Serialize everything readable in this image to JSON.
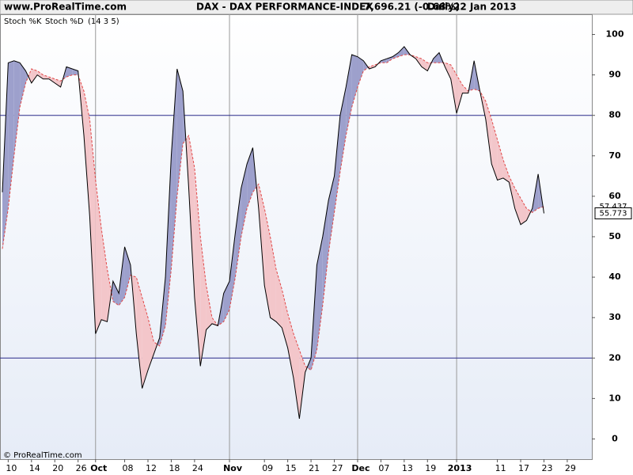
{
  "header": {
    "site": "www.ProRealTime.com",
    "instrument": "DAX - DAX PERFORMANCE-INDEX",
    "quote": "7,696.21 (-0.68%)",
    "period": "Daily",
    "date": "22 Jan 2013"
  },
  "footer": "© ProRealTime.com",
  "chart_data": {
    "type": "line",
    "indicator_params": "(14 3 5)",
    "categories": [
      null,
      "10",
      null,
      null,
      null,
      "14",
      null,
      null,
      null,
      "20",
      null,
      null,
      null,
      "26",
      null,
      null,
      "Oct",
      null,
      null,
      null,
      null,
      "08",
      null,
      null,
      null,
      "12",
      null,
      null,
      null,
      "18",
      null,
      null,
      null,
      "24",
      null,
      null,
      null,
      null,
      null,
      "Nov",
      null,
      null,
      null,
      null,
      null,
      "09",
      null,
      null,
      null,
      "15",
      null,
      null,
      null,
      "21",
      null,
      null,
      null,
      "27",
      null,
      null,
      null,
      "Dec",
      null,
      null,
      null,
      "07",
      null,
      null,
      null,
      "13",
      null,
      null,
      null,
      "19",
      null,
      null,
      null,
      null,
      "2013",
      null,
      null,
      null,
      null,
      null,
      null,
      "11",
      null,
      null,
      null,
      "17",
      null,
      null,
      null,
      "23",
      null,
      null,
      null,
      "29",
      null,
      null,
      null,
      null
    ],
    "series": [
      {
        "name": "Stoch %K",
        "color": "#000000",
        "fill_above": "#9da0cc",
        "values": [
          61,
          93,
          93.5,
          93,
          91,
          88,
          90,
          89,
          89,
          88,
          87,
          92,
          91.5,
          91,
          75,
          55,
          26,
          29.5,
          29,
          39,
          36,
          47.5,
          43,
          26,
          12.5,
          17,
          21,
          25,
          40,
          70,
          91.5,
          86,
          62,
          35,
          18,
          27,
          28.5,
          28,
          36,
          39,
          51,
          62,
          68,
          72,
          57,
          38,
          30,
          29,
          27.5,
          22.5,
          15,
          5,
          16.5,
          20,
          43,
          50,
          59,
          65,
          80,
          87,
          95,
          94.5,
          93.5,
          91.5,
          92,
          93.5,
          94,
          94.5,
          95.5,
          97,
          95,
          94,
          92,
          91,
          94,
          95.5,
          92,
          89,
          80.5,
          85.5,
          85.5,
          93.5,
          86,
          79,
          68,
          64,
          64.5,
          63.5,
          57,
          53,
          54,
          57,
          65.5,
          55.773,
          null,
          null,
          null,
          null,
          null,
          null,
          null,
          null
        ]
      },
      {
        "name": "Stoch %D",
        "color": "#e04848",
        "fill_above": "#f3c6ca",
        "dashed": true,
        "values": [
          47,
          57,
          70,
          82,
          88,
          91.5,
          91,
          90,
          89.5,
          89,
          88.5,
          89.5,
          90,
          90,
          86,
          79,
          64,
          52,
          42,
          34,
          33,
          35,
          40.5,
          40,
          35,
          30,
          24,
          23,
          28,
          42,
          60,
          73,
          75,
          67,
          50,
          38,
          30,
          28,
          29,
          32,
          40,
          50,
          57,
          61,
          63,
          57,
          50,
          42,
          37,
          31,
          26,
          22,
          18,
          17,
          22,
          33,
          46,
          56,
          66,
          75,
          82,
          87,
          91,
          92,
          92.5,
          93,
          93,
          94,
          94.5,
          95,
          95,
          94.5,
          94,
          93,
          93,
          93,
          93,
          92.5,
          90,
          87.5,
          86,
          86.5,
          86,
          83.5,
          79,
          74,
          69,
          65,
          62,
          59.5,
          57,
          56,
          57,
          57.437,
          null,
          null,
          null,
          null,
          null,
          null,
          null,
          null
        ]
      }
    ],
    "ylim": [
      -5,
      105
    ],
    "yticks": [
      0,
      10,
      20,
      30,
      40,
      50,
      60,
      70,
      80,
      90,
      100
    ],
    "reference_lines": [
      20,
      80
    ],
    "reference_color": "#2a2a8a"
  }
}
